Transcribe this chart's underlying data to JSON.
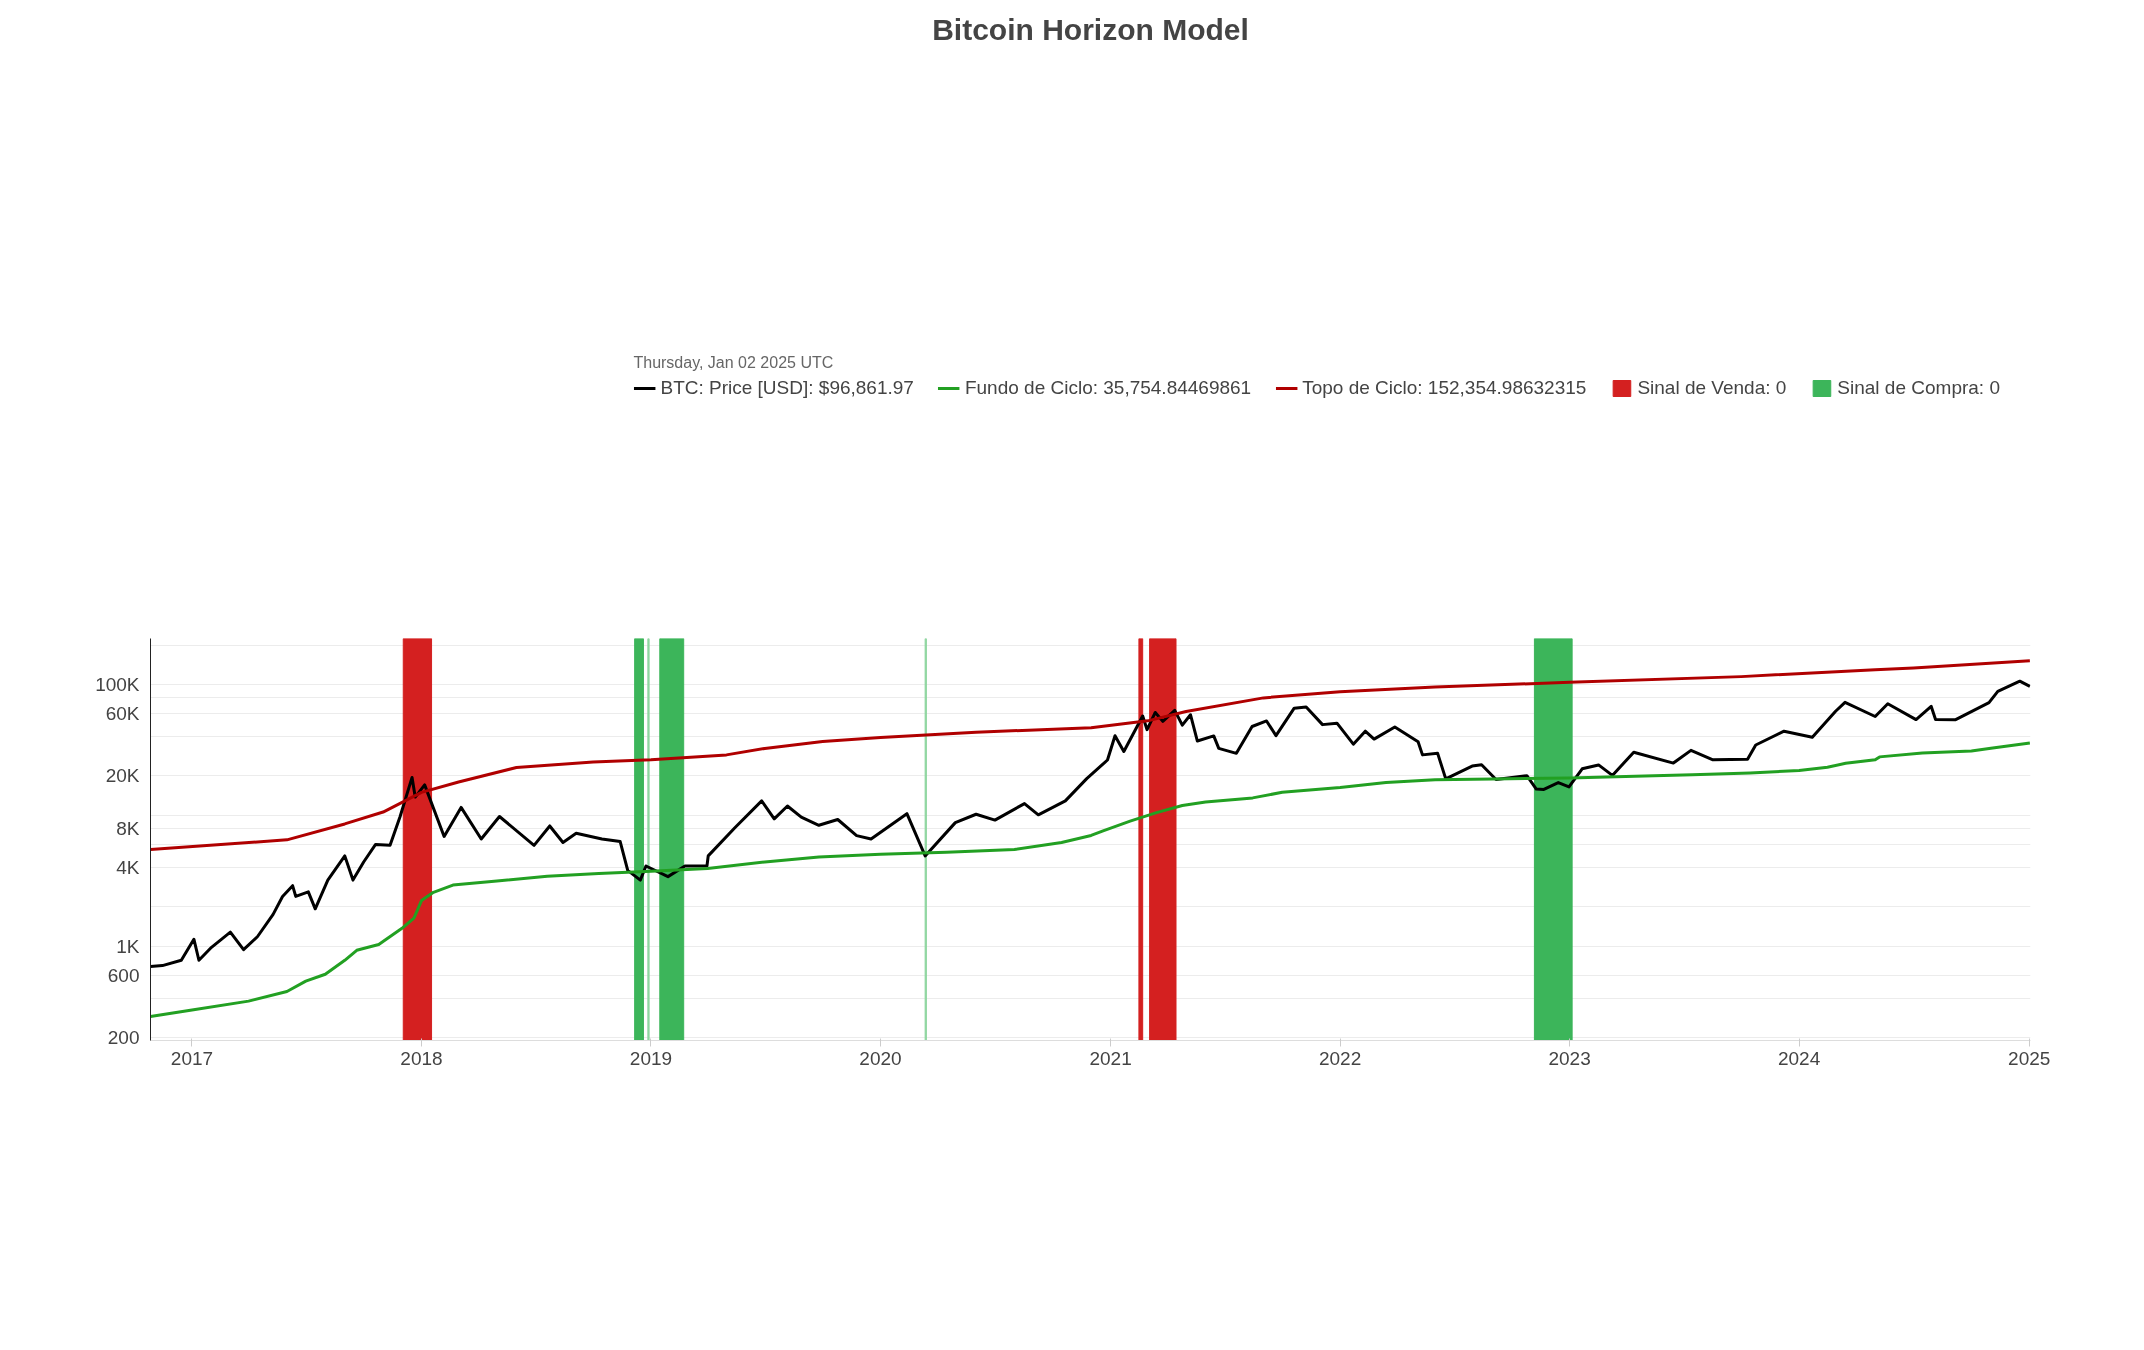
{
  "chart_data": {
    "type": "line",
    "title": "Bitcoin Horizon Model",
    "legend_title": "Thursday, Jan 02 2025 UTC",
    "log": true,
    "grid": "y",
    "legend": "top",
    "xlim": [
      "2016-10-27",
      "2025-01-03"
    ],
    "xticks": [
      {
        "value": "2017",
        "label": "2017"
      },
      {
        "value": "2018",
        "label": "2018"
      },
      {
        "value": "2019",
        "label": "2019"
      },
      {
        "value": "2020",
        "label": "2020"
      },
      {
        "value": "2021",
        "label": "2021"
      },
      {
        "value": "2022",
        "label": "2022"
      },
      {
        "value": "2023",
        "label": "2023"
      },
      {
        "value": "2024",
        "label": "2024"
      },
      {
        "value": "2025",
        "label": "2025"
      }
    ],
    "ylim": [
      190,
      225000
    ],
    "yticks": [
      200,
      {
        "value": 400,
        "label": null
      },
      600,
      {
        "value": 1000,
        "label": "1K"
      },
      {
        "value": 2000,
        "label": null
      },
      {
        "value": 4000,
        "label": "4K"
      },
      {
        "value": 6000,
        "label": null
      },
      {
        "value": 8000,
        "label": "8K"
      },
      {
        "value": 10000,
        "label": null
      },
      {
        "value": 20000,
        "label": "20K"
      },
      {
        "value": 40000,
        "label": null
      },
      {
        "value": 60000,
        "label": "60K"
      },
      {
        "value": 80000,
        "label": null
      },
      {
        "value": 100000,
        "label": "100K"
      },
      {
        "value": 200000,
        "label": null
      }
    ],
    "bands": [
      {
        "axis": "x",
        "from": "2017-12-03",
        "to": "2018-01-17",
        "label": "Sinal de Venda: 0",
        "color": "#d42020"
      },
      {
        "axis": "x",
        "from": "2018-12-06",
        "to": "2018-12-20",
        "label": "Sinal de Compra: 0",
        "color": "#3cb55a"
      },
      {
        "axis": "x",
        "from": "2018-12-27",
        "to": "2018-12-29",
        "label": null,
        "color": "#8fd6a0"
      },
      {
        "axis": "x",
        "from": "2019-01-15",
        "to": "2019-02-22",
        "label": null,
        "color": "#3cb55a"
      },
      {
        "axis": "x",
        "from": "2020-03-12",
        "to": "2020-03-14",
        "label": null,
        "color": "#8fd6a0"
      },
      {
        "axis": "x",
        "from": "2021-02-15",
        "to": "2021-02-21",
        "label": null,
        "color": "#d42020"
      },
      {
        "axis": "x",
        "from": "2021-03-04",
        "to": "2021-04-15",
        "label": null,
        "color": "#d42020"
      },
      {
        "axis": "x",
        "from": "2022-11-06",
        "to": "2023-01-05",
        "label": null,
        "color": "#3cb55a"
      }
    ],
    "series": [
      {
        "name": "BTC: Price [USD]: $96,861.97",
        "color": "#000000",
        "x": [
          "2016-10-27",
          "2016-11-15",
          "2016-12-15",
          "2017-01-04",
          "2017-01-12",
          "2017-02-01",
          "2017-03-03",
          "2017-03-24",
          "2017-04-15",
          "2017-05-10",
          "2017-05-25",
          "2017-06-10",
          "2017-06-15",
          "2017-07-05",
          "2017-07-16",
          "2017-08-05",
          "2017-09-01",
          "2017-09-14",
          "2017-10-01",
          "2017-10-20",
          "2017-11-12",
          "2017-11-28",
          "2017-12-17",
          "2017-12-22",
          "2018-01-06",
          "2018-02-06",
          "2018-03-05",
          "2018-04-06",
          "2018-05-05",
          "2018-06-29",
          "2018-07-24",
          "2018-08-14",
          "2018-09-04",
          "2018-10-15",
          "2018-11-13",
          "2018-11-25",
          "2018-12-15",
          "2018-12-24",
          "2019-01-28",
          "2019-02-24",
          "2019-03-31",
          "2019-04-02",
          "2019-05-14",
          "2019-06-26",
          "2019-07-16",
          "2019-08-06",
          "2019-08-28",
          "2019-09-25",
          "2019-10-25",
          "2019-11-24",
          "2019-12-17",
          "2020-02-12",
          "2020-03-12",
          "2020-04-29",
          "2020-06-01",
          "2020-07-01",
          "2020-08-17",
          "2020-09-08",
          "2020-10-21",
          "2020-11-24",
          "2020-12-27",
          "2021-01-08",
          "2021-01-22",
          "2021-02-21",
          "2021-02-28",
          "2021-03-13",
          "2021-03-25",
          "2021-04-13",
          "2021-04-25",
          "2021-05-08",
          "2021-05-19",
          "2021-06-14",
          "2021-06-22",
          "2021-07-20",
          "2021-08-14",
          "2021-09-06",
          "2021-09-21",
          "2021-10-20",
          "2021-11-08",
          "2021-12-04",
          "2021-12-27",
          "2022-01-22",
          "2022-02-10",
          "2022-02-24",
          "2022-03-29",
          "2022-05-05",
          "2022-05-12",
          "2022-06-05",
          "2022-06-18",
          "2022-07-30",
          "2022-08-14",
          "2022-09-06",
          "2022-10-25",
          "2022-11-09",
          "2022-11-21",
          "2022-12-14",
          "2022-12-31",
          "2023-01-21",
          "2023-02-16",
          "2023-03-10",
          "2023-04-13",
          "2023-06-15",
          "2023-07-13",
          "2023-08-17",
          "2023-10-11",
          "2023-10-24",
          "2023-12-08",
          "2024-01-22",
          "2024-02-28",
          "2024-03-14",
          "2024-05-01",
          "2024-05-21",
          "2024-07-05",
          "2024-07-29",
          "2024-08-05",
          "2024-09-06",
          "2024-10-29",
          "2024-11-12",
          "2024-12-17",
          "2025-01-02"
        ],
        "values": [
          700,
          710,
          780,
          1130,
          780,
          980,
          1280,
          940,
          1180,
          1750,
          2400,
          2900,
          2400,
          2600,
          1930,
          3200,
          4900,
          3200,
          4400,
          6000,
          5900,
          9800,
          19500,
          13800,
          17100,
          6900,
          11500,
          6600,
          9800,
          5900,
          8300,
          6200,
          7300,
          6600,
          6300,
          3800,
          3200,
          4100,
          3400,
          4100,
          4100,
          4900,
          8000,
          12900,
          9400,
          11800,
          9700,
          8400,
          9300,
          7000,
          6600,
          10300,
          4900,
          8800,
          10200,
          9200,
          12300,
          10100,
          12900,
          19100,
          26500,
          40600,
          30800,
          57500,
          45200,
          61200,
          52300,
          63500,
          49000,
          58800,
          37000,
          40500,
          32500,
          29800,
          47800,
          52700,
          40700,
          66000,
          67500,
          49400,
          50700,
          35000,
          44000,
          38300,
          47400,
          36500,
          29000,
          29900,
          19000,
          23800,
          24400,
          18800,
          20100,
          15900,
          15800,
          17800,
          16500,
          22700,
          24300,
          20200,
          30400,
          25100,
          31400,
          26600,
          26800,
          34500,
          44000,
          39500,
          62500,
          73100,
          57000,
          71400,
          54000,
          68200,
          54000,
          53900,
          72700,
          88700,
          106100,
          96862
        ]
      },
      {
        "name": "Fundo de Ciclo: 35,754.84469861",
        "color": "#22a022",
        "x": [
          "2016-10-27",
          "2017-01-01",
          "2017-04-01",
          "2017-06-01",
          "2017-07-01",
          "2017-08-01",
          "2017-09-01",
          "2017-09-20",
          "2017-10-25",
          "2017-12-01",
          "2017-12-20",
          "2018-01-01",
          "2018-01-20",
          "2018-02-20",
          "2018-05-01",
          "2018-07-20",
          "2018-10-10",
          "2019-01-01",
          "2019-04-01",
          "2019-07-01",
          "2019-09-25",
          "2020-01-01",
          "2020-04-15",
          "2020-08-01",
          "2020-10-15",
          "2020-12-01",
          "2020-12-20",
          "2021-02-01",
          "2021-03-15",
          "2021-04-25",
          "2021-06-01",
          "2021-08-15",
          "2021-10-01",
          "2022-01-01",
          "2022-03-15",
          "2022-06-01",
          "2022-09-01",
          "2023-01-01",
          "2023-04-15",
          "2023-07-15",
          "2023-10-15",
          "2024-01-01",
          "2024-02-15",
          "2024-03-15",
          "2024-05-01",
          "2024-05-08",
          "2024-07-15",
          "2024-10-01",
          "2024-11-01",
          "2025-01-02"
        ],
        "values": [
          290,
          325,
          380,
          450,
          540,
          610,
          780,
          930,
          1030,
          1370,
          1640,
          2230,
          2580,
          2930,
          3150,
          3430,
          3600,
          3740,
          3930,
          4400,
          4800,
          5040,
          5220,
          5480,
          6200,
          7020,
          7620,
          9040,
          10500,
          11900,
          12640,
          13600,
          15000,
          16300,
          17800,
          18700,
          19000,
          19300,
          19900,
          20400,
          21100,
          22000,
          23300,
          25000,
          26600,
          28000,
          30000,
          31100,
          32600,
          35755
        ]
      },
      {
        "name": "Topo de Ciclo: 152,354.98632315",
        "color": "#b00000",
        "x": [
          "2016-10-27",
          "2017-06-01",
          "2017-09-01",
          "2017-11-01",
          "2018-01-01",
          "2018-03-01",
          "2018-06-01",
          "2018-10-01",
          "2019-01-01",
          "2019-05-01",
          "2019-07-01",
          "2019-10-01",
          "2020-01-01",
          "2020-06-01",
          "2020-12-01",
          "2021-03-01",
          "2021-05-01",
          "2021-09-01",
          "2022-01-01",
          "2022-06-01",
          "2023-01-01",
          "2023-10-01",
          "2024-05-01",
          "2024-07-01",
          "2025-01-02"
        ],
        "values": [
          5480,
          6500,
          8600,
          10600,
          15000,
          18000,
          23200,
          25600,
          26600,
          29000,
          32500,
          36700,
          39400,
          43200,
          46800,
          52800,
          62300,
          79100,
          88000,
          96000,
          104000,
          115000,
          130000,
          134000,
          152355
        ]
      }
    ]
  }
}
